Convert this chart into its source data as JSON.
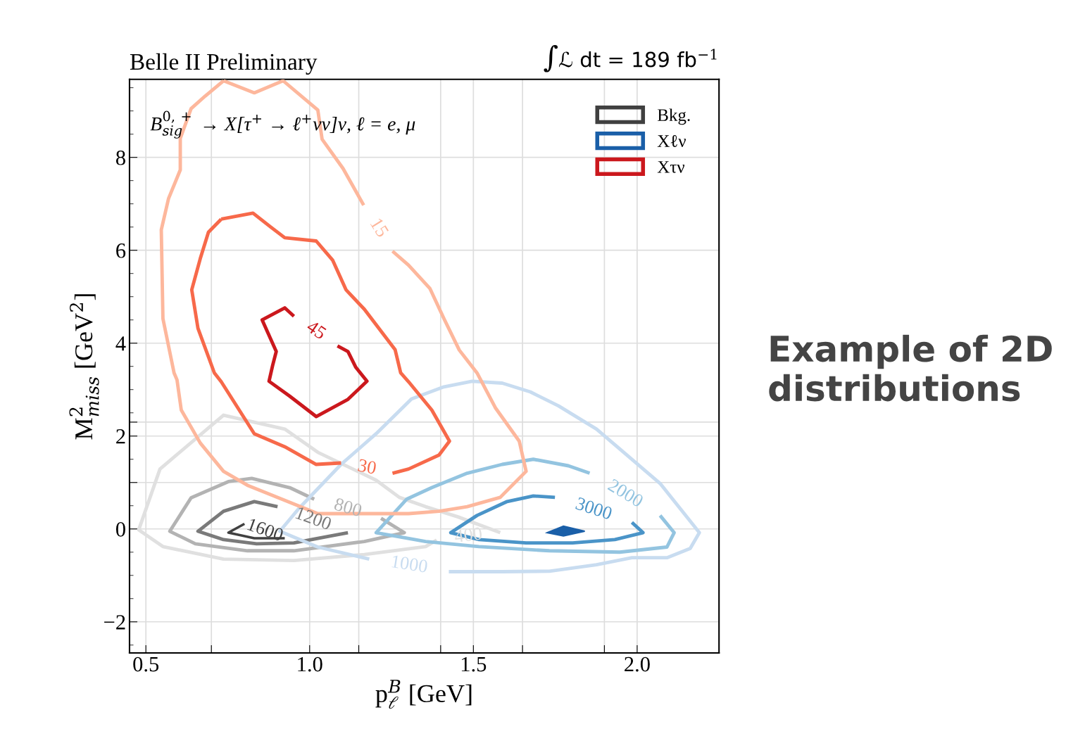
{
  "chart_data": {
    "type": "line",
    "title": "Belle II Preliminary",
    "subtitle": "∫ℒ dt = 189 fb$^{−1}$",
    "xlabel": "p$^{B}$$_{ℓ}$ [GeV]",
    "ylabel": "M$^{2}$$_{miss}$ [GeV$^{2}$]",
    "xlim": [
      0.45,
      2.25
    ],
    "ylim": [
      -2.67,
      9.68
    ],
    "xticks": [
      {
        "value": 0.5,
        "label": "0.5"
      },
      {
        "value": 0.7,
        "label": null
      },
      {
        "value": 1.0,
        "label": "1.0"
      },
      {
        "value": 1.15,
        "label": null
      },
      {
        "value": 1.4,
        "label": null
      },
      {
        "value": 1.5,
        "label": "1.5"
      },
      {
        "value": 1.65,
        "label": null
      },
      {
        "value": 1.9,
        "label": null
      },
      {
        "value": 2.0,
        "label": "2.0"
      }
    ],
    "yticks": [
      {
        "value": -2,
        "label": "−2"
      },
      0,
      {
        "value": 1.0,
        "label": null
      },
      2,
      {
        "value": 2.3,
        "label": null
      },
      4,
      6,
      8
    ],
    "grid": true,
    "legend": "top right",
    "line_style": "solid",
    "marker": "none",
    "series": [
      {
        "name": "Bkg.",
        "color": "#404040",
        "x": [
          0.801,
          0.752,
          0.831,
          0.924
        ],
        "values": [
          0.11,
          -0.08,
          -0.2,
          -0.2
        ]
      },
      {
        "color": "#7a7a7a",
        "x": [
          0.902,
          0.831,
          0.737,
          0.659,
          0.737,
          0.838,
          0.952,
          1.117
        ],
        "values": [
          0.48,
          0.59,
          0.38,
          -0.05,
          -0.23,
          -0.32,
          -0.3,
          -0.08
        ]
      },
      {
        "color": "#b3b3b3",
        "x": [
          1.218,
          1.289,
          1.167,
          0.952,
          0.81,
          0.651,
          0.573,
          0.638,
          0.752,
          0.823,
          0.939,
          1.014
        ],
        "values": [
          0.23,
          -0.08,
          -0.27,
          -0.47,
          -0.47,
          -0.32,
          -0.05,
          0.67,
          1.02,
          1.09,
          0.89,
          0.64
        ]
      },
      {
        "color": "#e0e0e0",
        "x": [
          1.388,
          1.354,
          1.167,
          0.952,
          0.737,
          0.552,
          0.478,
          0.543,
          0.737,
          0.924,
          1.025,
          1.203,
          1.274,
          1.354,
          1.453,
          1.582
        ],
        "values": [
          -0.24,
          -0.38,
          -0.55,
          -0.68,
          -0.65,
          -0.38,
          -0.02,
          1.29,
          2.45,
          2.15,
          1.65,
          1.05,
          0.68,
          0.48,
          0.26,
          -0.08
        ]
      },
      {
        "name": "Xℓν",
        "type": "area",
        "color": "#1a5fa8",
        "x": [
          1.726,
          1.775,
          1.84,
          1.775,
          1.726
        ],
        "values": [
          -0.08,
          0.06,
          -0.05,
          -0.15,
          -0.08
        ]
      },
      {
        "color": "#4a94c8",
        "x": [
          1.749,
          1.683,
          1.603,
          1.511,
          1.431,
          1.517,
          1.661,
          1.803,
          1.932,
          2.018,
          1.984
        ],
        "values": [
          0.68,
          0.71,
          0.59,
          0.29,
          -0.08,
          -0.23,
          -0.3,
          -0.3,
          -0.23,
          -0.08,
          0.14
        ]
      },
      {
        "color": "#93c4e0",
        "x": [
          2.07,
          2.113,
          2.091,
          1.947,
          1.732,
          1.517,
          1.354,
          1.203,
          1.296,
          1.373,
          1.481,
          1.588,
          1.683,
          1.79,
          1.855
        ],
        "values": [
          0.29,
          -0.08,
          -0.39,
          -0.5,
          -0.47,
          -0.38,
          -0.27,
          -0.08,
          0.64,
          0.89,
          1.2,
          1.39,
          1.5,
          1.36,
          1.2
        ]
      },
      {
        "color": "#c8dcf0",
        "x": [
          1.182,
          1.025,
          0.909,
          0.967,
          1.096,
          1.203,
          1.311,
          1.41,
          1.496,
          1.588,
          1.674,
          1.76,
          1.876,
          1.969,
          2.07,
          2.19,
          2.162,
          2.091,
          1.984,
          1.876,
          1.732,
          1.588,
          1.425
        ],
        "values": [
          -0.65,
          -0.39,
          -0.05,
          0.44,
          1.39,
          2.05,
          2.8,
          3.06,
          3.18,
          3.14,
          2.95,
          2.65,
          2.15,
          1.59,
          0.98,
          -0.08,
          -0.42,
          -0.62,
          -0.62,
          -0.77,
          -0.91,
          -0.92,
          -0.92
        ]
      },
      {
        "name": "Xτν",
        "color": "#cb181d",
        "x": [
          1.085,
          1.117,
          1.141,
          1.175,
          1.117,
          1.02,
          0.939,
          0.876,
          0.887,
          0.898,
          0.855,
          0.924,
          0.952
        ],
        "values": [
          3.94,
          3.82,
          3.48,
          3.18,
          2.79,
          2.42,
          2.86,
          3.18,
          3.52,
          3.82,
          4.5,
          4.76,
          4.58
        ]
      },
      {
        "color": "#f7694a",
        "x": [
          0.73,
          0.827,
          0.881,
          0.924,
          1.02,
          1.07,
          1.111,
          1.167,
          1.261,
          1.278,
          1.302,
          1.373,
          1.427,
          1.395,
          1.302,
          1.253,
          1.175,
          1.096,
          1.02,
          0.924,
          0.831,
          0.73,
          0.709,
          0.659,
          0.64,
          0.666,
          0.691,
          0.73
        ],
        "values": [
          6.67,
          6.8,
          6.5,
          6.27,
          6.2,
          5.79,
          5.15,
          4.73,
          3.86,
          3.36,
          3.17,
          2.56,
          1.89,
          1.59,
          1.29,
          1.2,
          null,
          1.42,
          1.39,
          1.77,
          2.05,
          3.17,
          3.36,
          4.32,
          5.15,
          5.82,
          6.39,
          6.67
        ]
      },
      {
        "color": "#fdb79c",
        "x": [
          0.737,
          0.831,
          0.919,
          1.025,
          1.038,
          1.102,
          1.165,
          1.21,
          1.253,
          1.302,
          1.367,
          1.41,
          1.457,
          1.511,
          1.567,
          1.64,
          1.661,
          1.582,
          1.481,
          1.395,
          1.302,
          1.025,
          0.81,
          0.737,
          0.666,
          0.608,
          0.595,
          0.586,
          0.552,
          0.547,
          0.569,
          0.605,
          0.605,
          0.638,
          0.681,
          0.737
        ],
        "values": [
          9.65,
          9.39,
          9.65,
          9.02,
          8.39,
          7.76,
          6.97,
          null,
          5.98,
          5.68,
          5.18,
          4.53,
          3.85,
          3.36,
          2.61,
          1.89,
          1.24,
          0.68,
          0.48,
          0.38,
          0.33,
          0.33,
          0.94,
          1.24,
          1.85,
          2.56,
          3.21,
          3.36,
          4.53,
          6.44,
          7.11,
          7.73,
          8.41,
          9.05,
          9.32,
          9.65
        ]
      }
    ],
    "annotations": [
      "B$^{0,+}$$_{sig}$ → X[τ$^{+}$ → ℓ$^{+}$νν]ν, ℓ = e, μ",
      "Example of 2D distributions",
      {
        "text": "15",
        "x": 1.165,
        "y": 6.97
      },
      {
        "text": "30",
        "x": 1.253,
        "y": 1.2
      },
      {
        "text": "45",
        "x": 0.952,
        "y": 4.58
      },
      {
        "text": "1600",
        "x": 0.924,
        "y": -0.2
      },
      {
        "text": "1200",
        "x": 0.902,
        "y": 0.48
      },
      {
        "text": "800",
        "x": 1.014,
        "y": 0.64
      },
      {
        "text": "400",
        "x": 1.582,
        "y": -0.08
      },
      {
        "text": "1000",
        "x": 1.182,
        "y": -0.65
      },
      {
        "text": "2000",
        "x": 1.855,
        "y": 1.2
      },
      {
        "text": "3000",
        "x": 1.749,
        "y": 0.68
      }
    ]
  }
}
